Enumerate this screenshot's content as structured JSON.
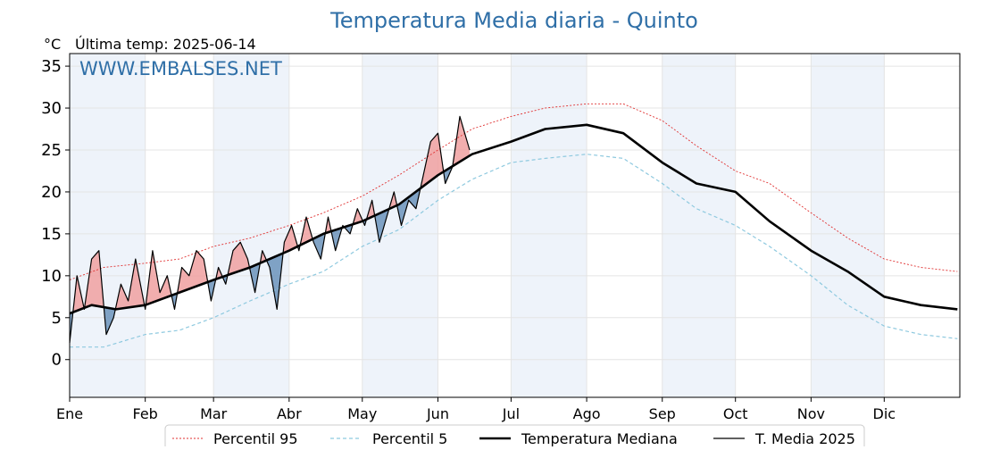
{
  "header": {
    "title": "Temperatura Media diaria - Quinto",
    "unit": "°C",
    "last_temp_label": "Última temp: 2025-06-14",
    "watermark": "WWW.EMBALSES.NET"
  },
  "colors": {
    "title": "#2f6fa7",
    "watermark": "#2f6fa7",
    "p95": "#e03030",
    "p5": "#8ec9df",
    "median": "#000000",
    "t2025": "#000000",
    "above_fill": "#f0a0a0",
    "below_fill": "#6b93bb",
    "band": "#eef3fa"
  },
  "chart_data": {
    "type": "line",
    "title": "Temperatura Media diaria - Quinto",
    "ylabel": "°C",
    "ylim": [
      -4.5,
      36.5
    ],
    "yticks": [
      0,
      5,
      10,
      15,
      20,
      25,
      30,
      35
    ],
    "xlim": [
      1,
      366
    ],
    "grid": true,
    "month_labels": [
      "Ene",
      "Feb",
      "Mar",
      "Abr",
      "May",
      "Jun",
      "Jul",
      "Ago",
      "Sep",
      "Oct",
      "Nov",
      "Dic"
    ],
    "month_starts": [
      1,
      32,
      60,
      91,
      121,
      152,
      182,
      213,
      244,
      274,
      305,
      335
    ],
    "legend_position": "bottom-center",
    "legend": [
      "Percentil 95",
      "Percentil 5",
      "Temperatura Mediana",
      "T. Media 2025"
    ],
    "series": [
      {
        "name": "Percentil 95",
        "style": "dotted",
        "color": "#e03030",
        "x": [
          1,
          15,
          32,
          46,
          60,
          75,
          91,
          105,
          121,
          136,
          152,
          166,
          182,
          196,
          213,
          228,
          244,
          258,
          274,
          288,
          305,
          320,
          335,
          350,
          365
        ],
        "y": [
          9.5,
          11,
          11.5,
          12,
          13.5,
          14.5,
          16,
          17.5,
          19.5,
          22,
          25,
          27.5,
          29,
          30,
          30.5,
          30.5,
          28.5,
          25.5,
          22.5,
          21,
          17.5,
          14.5,
          12,
          11,
          10.5
        ]
      },
      {
        "name": "Percentil 5",
        "style": "dashed",
        "color": "#8ec9df",
        "x": [
          1,
          15,
          32,
          46,
          60,
          75,
          91,
          105,
          121,
          136,
          152,
          166,
          182,
          196,
          213,
          228,
          244,
          258,
          274,
          288,
          305,
          320,
          335,
          350,
          365
        ],
        "y": [
          1.5,
          1.5,
          3,
          3.5,
          5,
          7,
          9,
          10.5,
          13.5,
          15.5,
          19,
          21.5,
          23.5,
          24,
          24.5,
          24,
          21,
          18,
          16,
          13.5,
          10,
          6.5,
          4,
          3,
          2.5
        ]
      },
      {
        "name": "Temperatura Mediana",
        "style": "solid",
        "color": "#000000",
        "x": [
          1,
          10,
          20,
          32,
          46,
          60,
          75,
          91,
          105,
          121,
          136,
          152,
          166,
          182,
          196,
          213,
          228,
          244,
          258,
          274,
          288,
          305,
          320,
          335,
          350,
          365
        ],
        "y": [
          5.5,
          6.5,
          6,
          6.5,
          8,
          9.5,
          11,
          13,
          15,
          16.5,
          18.5,
          22,
          24.5,
          26,
          27.5,
          28,
          27,
          23.5,
          21,
          20,
          16.5,
          13,
          10.5,
          7.5,
          6.5,
          6
        ]
      },
      {
        "name": "T. Media 2025",
        "style": "solid",
        "color": "#000000",
        "x": [
          1,
          4,
          7,
          10,
          13,
          16,
          19,
          22,
          25,
          28,
          32,
          35,
          38,
          41,
          44,
          47,
          50,
          53,
          56,
          59,
          62,
          65,
          68,
          71,
          74,
          77,
          80,
          83,
          86,
          89,
          92,
          95,
          98,
          101,
          104,
          107,
          110,
          113,
          116,
          119,
          122,
          125,
          128,
          131,
          134,
          137,
          140,
          143,
          146,
          149,
          152,
          155,
          158,
          161,
          165
        ],
        "y": [
          2,
          10,
          6,
          12,
          13,
          3,
          5,
          9,
          7,
          12,
          6,
          13,
          8,
          10,
          6,
          11,
          10,
          13,
          12,
          7,
          11,
          9,
          13,
          14,
          12,
          8,
          13,
          11,
          6,
          14,
          16,
          13,
          17,
          14,
          12,
          17,
          13,
          16,
          15,
          18,
          16,
          19,
          14,
          17,
          20,
          16,
          19,
          18,
          22,
          26,
          27,
          21,
          23,
          29,
          25
        ]
      }
    ]
  },
  "legend_items": [
    {
      "label": "Percentil 95"
    },
    {
      "label": "Percentil 5"
    },
    {
      "label": "Temperatura Mediana"
    },
    {
      "label": "T. Media 2025"
    }
  ]
}
